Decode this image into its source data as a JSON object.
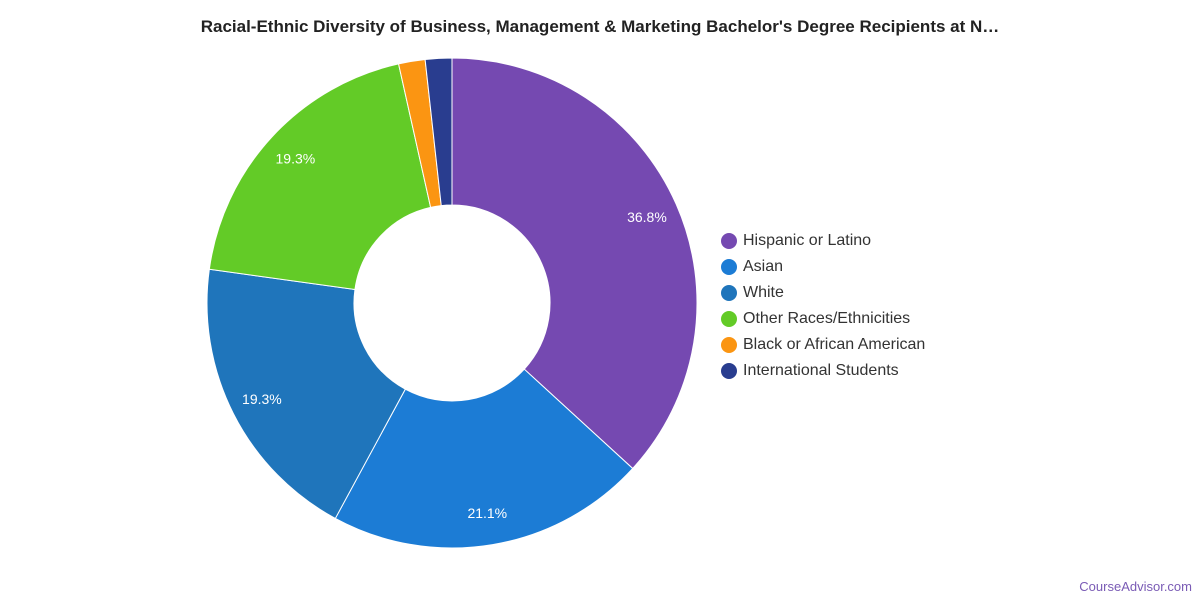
{
  "chart_data": {
    "type": "pie",
    "title": "Racial-Ethnic Diversity of Business, Management & Marketing Bachelor's Degree Recipients at N…",
    "donut": true,
    "legend_position": "right",
    "slices": [
      {
        "label": "Hispanic or Latino",
        "value": 36.8,
        "value_label": "36.8%",
        "color": "#7549b1"
      },
      {
        "label": "Asian",
        "value": 21.1,
        "value_label": "21.1%",
        "color": "#1c7cd5"
      },
      {
        "label": "White",
        "value": 19.3,
        "value_label": "19.3%",
        "color": "#1f75bb"
      },
      {
        "label": "Other Races/Ethnicities",
        "value": 19.3,
        "value_label": "19.3%",
        "color": "#63cb27"
      },
      {
        "label": "Black or African American",
        "value": 1.75,
        "value_label": "",
        "color": "#fb9512"
      },
      {
        "label": "International Students",
        "value": 1.75,
        "value_label": "",
        "color": "#293d8f"
      }
    ]
  },
  "watermark": "CourseAdvisor.com"
}
